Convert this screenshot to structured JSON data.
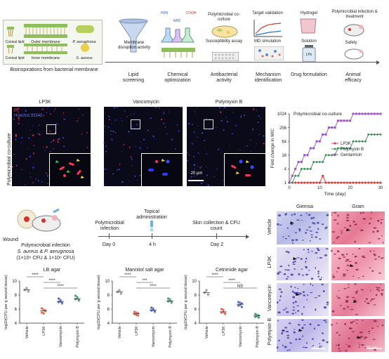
{
  "top": {
    "bacteria_box": {
      "conical_lipid_1": "Conical lipid",
      "outer_membrane": "Outer membrane",
      "p_aeruginosa": "P. aeruginosa",
      "conical_lipid_2": "Conical lipid",
      "inner_membrane": "Inner membrane",
      "s_aureus": "S. aureus",
      "caption": "Bioinspirations from bacterial membrane"
    },
    "steps": [
      {
        "top": "Membrane disruption activity",
        "bottom": "Lipid screening"
      },
      {
        "top": "",
        "bottom": "Chemical optimization"
      },
      {
        "top": "Polymicrobial co-culture",
        "mid": "Susceptibility assay",
        "bottom": "Antibacterial activity"
      },
      {
        "top": "Target validation",
        "mid": "MD simulation",
        "bottom": "Mechanism identification"
      },
      {
        "top": "Hydrogel",
        "mid": "Solution",
        "lps": "LPs",
        "bottom": "Drug formulation"
      },
      {
        "top": "Polymicrobial infection & treatment",
        "mid": "Safety",
        "bottom": "Animal efficacy"
      }
    ],
    "molecule": {
      "nh2_1": "H2N",
      "cooh": "COOH",
      "nh2_2": "NH2"
    }
  },
  "microscopy": {
    "side_label": "Polymicrobial co-culture",
    "legend_pi": "PI",
    "legend_hoechst": "Hoechst 33342",
    "panels": [
      "LP3K",
      "Vancomycin",
      "Polymyxin B"
    ],
    "scale_bar": "20 μm"
  },
  "chart_data": [
    {
      "type": "line",
      "title": "Polymicrobial co-culture",
      "xlabel": "Time (day)",
      "ylabel": "Fold change in MIC",
      "log_scale_y": true,
      "xlim": [
        0,
        30
      ],
      "ylim": [
        1,
        1024
      ],
      "xticks": [
        "0",
        "10",
        "20",
        "30"
      ],
      "yticks": [
        "1",
        "4",
        "16",
        "64",
        "256",
        "1024"
      ],
      "legend_position": "center-right",
      "series": [
        {
          "name": "LP3K",
          "color": "#e03131",
          "marker": "circle",
          "x": [
            0,
            1,
            2,
            3,
            4,
            5,
            6,
            7,
            8,
            9,
            10,
            11,
            12,
            13,
            14,
            15,
            16,
            17,
            18,
            19,
            20,
            21,
            22,
            23,
            24,
            25,
            26,
            27,
            28,
            29,
            30
          ],
          "y": [
            1,
            1,
            1,
            1,
            1,
            1,
            1,
            1,
            1,
            1,
            1,
            2,
            1,
            1,
            1,
            1,
            1,
            1,
            1,
            1,
            1,
            1,
            1,
            1,
            1,
            1,
            1,
            1,
            1,
            1,
            1
          ]
        },
        {
          "name": "Polymyxin B",
          "color": "#2f8a4e",
          "marker": "diamond",
          "x": [
            0,
            1,
            2,
            3,
            4,
            5,
            6,
            7,
            8,
            9,
            10,
            11,
            12,
            13,
            14,
            15,
            16,
            17,
            18,
            19,
            20,
            21,
            22,
            23,
            24,
            25,
            26,
            27,
            28,
            29,
            30
          ],
          "y": [
            1,
            1,
            2,
            2,
            4,
            4,
            4,
            4,
            8,
            8,
            8,
            8,
            16,
            16,
            16,
            16,
            32,
            32,
            32,
            32,
            32,
            64,
            64,
            64,
            64,
            64,
            128,
            128,
            128,
            128,
            128
          ]
        },
        {
          "name": "Gentamicin",
          "color": "#9b51c4",
          "marker": "square",
          "x": [
            0,
            1,
            2,
            3,
            4,
            5,
            6,
            7,
            8,
            9,
            10,
            11,
            12,
            13,
            14,
            15,
            16,
            17,
            18,
            19,
            20,
            21,
            22,
            23,
            24,
            25,
            26,
            27,
            28,
            29,
            30
          ],
          "y": [
            1,
            2,
            4,
            8,
            8,
            16,
            16,
            32,
            32,
            64,
            64,
            128,
            128,
            256,
            256,
            256,
            512,
            512,
            512,
            512,
            512,
            1024,
            1024,
            1024,
            1024,
            1024,
            1024,
            1024,
            1024,
            1024,
            1024
          ]
        }
      ]
    },
    {
      "type": "scatter",
      "title": "LB agar",
      "ylabel": "log10(CFU per g wound tissue)",
      "ylim": [
        4,
        10
      ],
      "yticks": [
        "4",
        "6",
        "8",
        "10"
      ],
      "categories": [
        "Vehicle",
        "LP3K",
        "Vancomycin",
        "Polymyxin B"
      ],
      "colors": [
        "#9a9a9a",
        "#e2553f",
        "#4a5fb8",
        "#3f8f78"
      ],
      "points": [
        [
          8.8,
          8.9,
          8.6,
          8.7,
          9.0,
          8.5
        ],
        [
          5.5,
          5.9,
          5.7,
          6.1,
          5.4,
          5.8
        ],
        [
          7.0,
          7.3,
          6.8,
          7.5,
          7.1,
          6.9
        ],
        [
          7.4,
          7.7,
          7.2,
          7.9,
          7.5,
          7.3
        ]
      ],
      "brackets": [
        {
          "from": 0,
          "to": 1,
          "label": "****"
        },
        {
          "from": 1,
          "to": 2,
          "label": "****"
        },
        {
          "from": 1,
          "to": 3,
          "label": "****"
        }
      ]
    },
    {
      "type": "scatter",
      "title": "Mannitol salt agar",
      "ylabel": "log10(CFU per g wound tissue)",
      "ylim": [
        4,
        10
      ],
      "yticks": [
        "4",
        "6",
        "8",
        "10"
      ],
      "categories": [
        "Vehicle",
        "LP3K",
        "Vancomycin",
        "Polymyxin B"
      ],
      "colors": [
        "#9a9a9a",
        "#e2553f",
        "#4a5fb8",
        "#3f8f78"
      ],
      "points": [
        [
          8.4,
          8.6,
          8.3,
          8.5,
          8.7,
          8.2
        ],
        [
          5.3,
          5.5,
          5.1,
          5.6,
          5.2,
          5.4
        ],
        [
          5.8,
          6.1,
          5.6,
          6.2,
          5.9,
          5.7
        ],
        [
          7.1,
          7.4,
          6.9,
          7.5,
          7.2,
          7.0
        ]
      ],
      "brackets": [
        {
          "from": 0,
          "to": 1,
          "label": "****"
        },
        {
          "from": 1,
          "to": 2,
          "label": "***"
        },
        {
          "from": 1,
          "to": 3,
          "label": "****"
        }
      ]
    },
    {
      "type": "scatter",
      "title": "Cetrimide agar",
      "ylabel": "log10(CFU per g wound tissue)",
      "ylim": [
        4,
        10
      ],
      "yticks": [
        "4",
        "6",
        "8",
        "10"
      ],
      "categories": [
        "Vehicle",
        "LP3K",
        "Vancomycin",
        "Polymyxin B"
      ],
      "colors": [
        "#9a9a9a",
        "#e2553f",
        "#4a5fb8",
        "#3f8f78"
      ],
      "points": [
        [
          8.3,
          8.6,
          8.0,
          8.4,
          8.7,
          8.1
        ],
        [
          5.5,
          5.9,
          5.3,
          6.0,
          5.6,
          5.4
        ],
        [
          6.5,
          6.9,
          6.3,
          7.0,
          6.6,
          6.8
        ],
        [
          4.9,
          5.2,
          4.8,
          5.3,
          5.0,
          5.1
        ]
      ],
      "brackets": [
        {
          "from": 0,
          "to": 1,
          "label": "****"
        },
        {
          "from": 1,
          "to": 2,
          "label": "****"
        },
        {
          "from": 1,
          "to": 3,
          "label": "NS"
        }
      ]
    }
  ],
  "timeline": {
    "wound": "Wound",
    "infection_label": "Polymicrobial infection",
    "strains": "S. aureus & P. aeruginosa",
    "cfu": "(1×10⁶ CFU & 1×10⁶ CFU)",
    "events": [
      {
        "label": "Polymicrobial infection",
        "day": "Day 0"
      },
      {
        "label": "Topical administration",
        "day": "4 h"
      },
      {
        "label": "Skin collection & CFU count",
        "day": "Day 2"
      }
    ]
  },
  "histology": {
    "columns": [
      "Giemsa",
      "Gram"
    ],
    "rows": [
      "Vehicle",
      "LP3K",
      "Vancomycin",
      "Polymyxin B"
    ],
    "scale_giemsa": "25 μm",
    "scale_gram": "50 μm"
  }
}
